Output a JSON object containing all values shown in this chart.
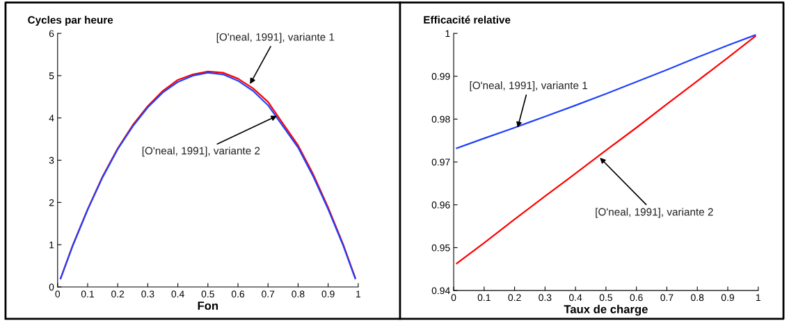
{
  "chart_data": [
    {
      "type": "line",
      "ylabel": "Cycles par heure",
      "xlabel": "Fon",
      "x": [
        0.01,
        0.05,
        0.1,
        0.15,
        0.2,
        0.25,
        0.3,
        0.35,
        0.4,
        0.45,
        0.5,
        0.55,
        0.6,
        0.65,
        0.7,
        0.75,
        0.8,
        0.85,
        0.9,
        0.95,
        0.99
      ],
      "series": [
        {
          "color": "#ff0000",
          "values": [
            0.2,
            0.98,
            1.84,
            2.62,
            3.28,
            3.83,
            4.28,
            4.64,
            4.9,
            5.03,
            5.1,
            5.07,
            4.93,
            4.7,
            4.38,
            3.86,
            3.35,
            2.67,
            1.88,
            1.01,
            0.22
          ]
        },
        {
          "color": "#1e40ff",
          "values": [
            0.2,
            0.97,
            1.83,
            2.6,
            3.26,
            3.8,
            4.25,
            4.6,
            4.85,
            5.0,
            5.07,
            5.03,
            4.88,
            4.64,
            4.3,
            3.8,
            3.3,
            2.62,
            1.84,
            0.98,
            0.2
          ]
        }
      ],
      "xlim": [
        0,
        1
      ],
      "xticks": [
        0,
        0.1,
        0.2,
        0.3,
        0.4,
        0.5,
        0.6,
        0.7,
        0.8,
        0.9,
        1
      ],
      "ylim": [
        0,
        6
      ],
      "yticks": [
        0,
        1,
        2,
        3,
        4,
        5,
        6
      ],
      "grid": false,
      "legend": false,
      "marker": "none",
      "line_style": "solid",
      "annotations": [
        {
          "text": "[O'neal, 1991], variante 1",
          "x": 0.64,
          "y": 4.8
        },
        {
          "text": "[O'neal, 1991], variante 2",
          "x": 0.73,
          "y": 4.05
        }
      ]
    },
    {
      "type": "line",
      "ylabel": "Efficacité relative",
      "xlabel": "Taux de charge",
      "x": [
        0.01,
        0.1,
        0.2,
        0.3,
        0.4,
        0.5,
        0.6,
        0.7,
        0.8,
        0.9,
        0.99
      ],
      "series": [
        {
          "color": "#1e40ff",
          "values": [
            0.9732,
            0.9755,
            0.978,
            0.9806,
            0.9832,
            0.9859,
            0.9887,
            0.9915,
            0.9944,
            0.9972,
            0.9996
          ]
        },
        {
          "color": "#ff0000",
          "values": [
            0.9463,
            0.9511,
            0.9566,
            0.962,
            0.9673,
            0.9727,
            0.978,
            0.9835,
            0.9889,
            0.9943,
            0.9993
          ]
        }
      ],
      "xlim": [
        0,
        1
      ],
      "xticks": [
        0,
        0.1,
        0.2,
        0.3,
        0.4,
        0.5,
        0.6,
        0.7,
        0.8,
        0.9,
        1
      ],
      "ylim": [
        0.94,
        1
      ],
      "yticks": [
        0.94,
        0.95,
        0.96,
        0.97,
        0.98,
        0.99,
        1
      ],
      "grid": false,
      "legend": false,
      "marker": "none",
      "line_style": "solid",
      "annotations": [
        {
          "text": "[O'neal, 1991], variante 1",
          "x": 0.21,
          "y": 0.978
        },
        {
          "text": "[O'neal, 1991], variante 2",
          "x": 0.48,
          "y": 0.971
        }
      ]
    }
  ]
}
